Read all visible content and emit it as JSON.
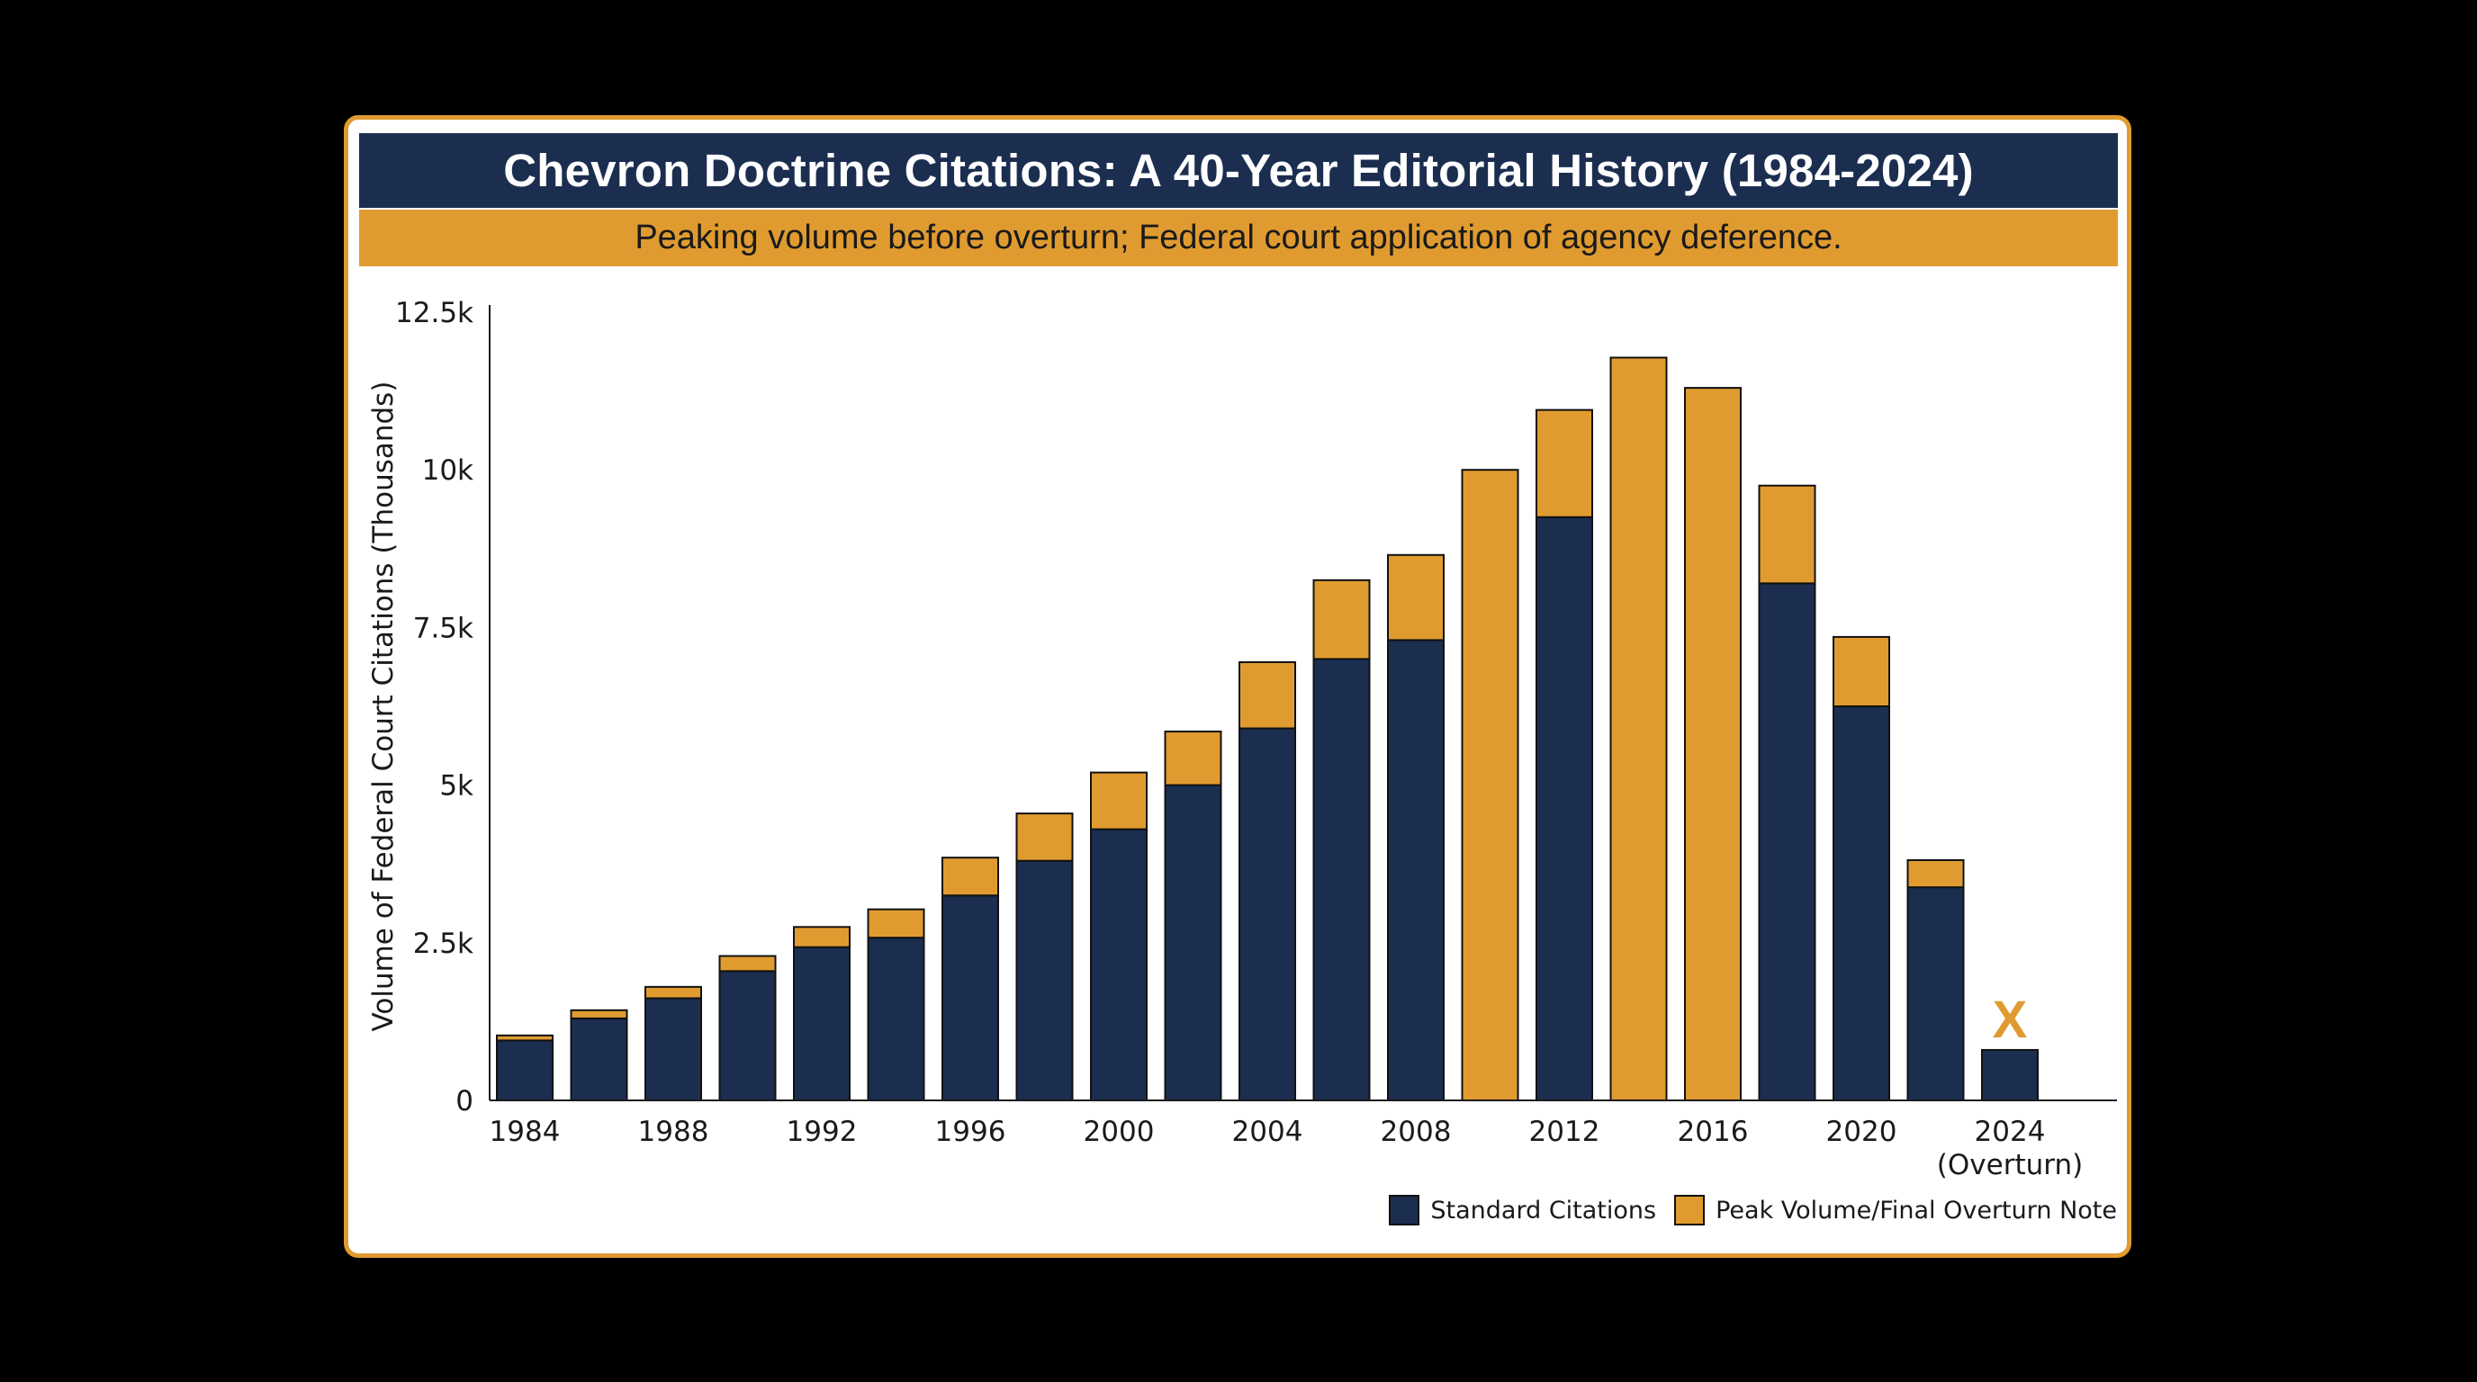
{
  "colors": {
    "standard": "#1b2e50",
    "peak": "#e09b30",
    "background": "#000000",
    "card": "#ffffff"
  },
  "chart_data": {
    "type": "bar",
    "stacked": true,
    "title": "Chevron Doctrine Citations: A 40-Year Editorial History (1984-2024)",
    "subtitle": "Peaking volume before overturn; Federal court application of agency deference.",
    "ylabel": "Volume of Federal Court Citations (Thousands)",
    "xlabel": "",
    "ylim": [
      0,
      12500
    ],
    "yticks": [
      {
        "value": 0,
        "label": "0"
      },
      {
        "value": 2500,
        "label": "2.5k"
      },
      {
        "value": 5000,
        "label": "5k"
      },
      {
        "value": 7500,
        "label": "7.5k"
      },
      {
        "value": 10000,
        "label": "10k"
      },
      {
        "value": 12500,
        "label": "12.5k"
      }
    ],
    "categories": [
      1984,
      1986,
      1988,
      1990,
      1992,
      1994,
      1996,
      1998,
      2000,
      2002,
      2004,
      2006,
      2008,
      2010,
      2012,
      2014,
      2016,
      2018,
      2020,
      2022,
      2024
    ],
    "xtick_labels": [
      {
        "year": 1984,
        "label": "1984"
      },
      {
        "year": 1988,
        "label": "1988"
      },
      {
        "year": 1992,
        "label": "1992"
      },
      {
        "year": 1996,
        "label": "1996"
      },
      {
        "year": 2000,
        "label": "2000"
      },
      {
        "year": 2004,
        "label": "2004"
      },
      {
        "year": 2008,
        "label": "2008"
      },
      {
        "year": 2012,
        "label": "2012"
      },
      {
        "year": 2016,
        "label": "2016"
      },
      {
        "year": 2020,
        "label": "2020"
      },
      {
        "year": 2024,
        "label": "2024",
        "sublabel": "(Overturn)"
      }
    ],
    "series": [
      {
        "name": "Standard Citations",
        "color": "#1b2e50",
        "values": [
          950,
          1300,
          1620,
          2050,
          2430,
          2580,
          3250,
          3800,
          4300,
          5000,
          5900,
          7000,
          7300,
          0,
          9250,
          0,
          0,
          8200,
          6250,
          3380,
          800
        ]
      },
      {
        "name": "Peak Volume/Final Overturn Note",
        "color": "#e09b30",
        "values": [
          80,
          130,
          180,
          240,
          320,
          450,
          600,
          750,
          900,
          850,
          1050,
          1250,
          1350,
          10000,
          1700,
          11780,
          11300,
          1550,
          1100,
          430,
          0
        ]
      }
    ],
    "annotations": [
      {
        "year": 2024,
        "text": "X",
        "color": "#e09b30"
      }
    ],
    "grid": false,
    "legend_position": "bottom-right"
  }
}
